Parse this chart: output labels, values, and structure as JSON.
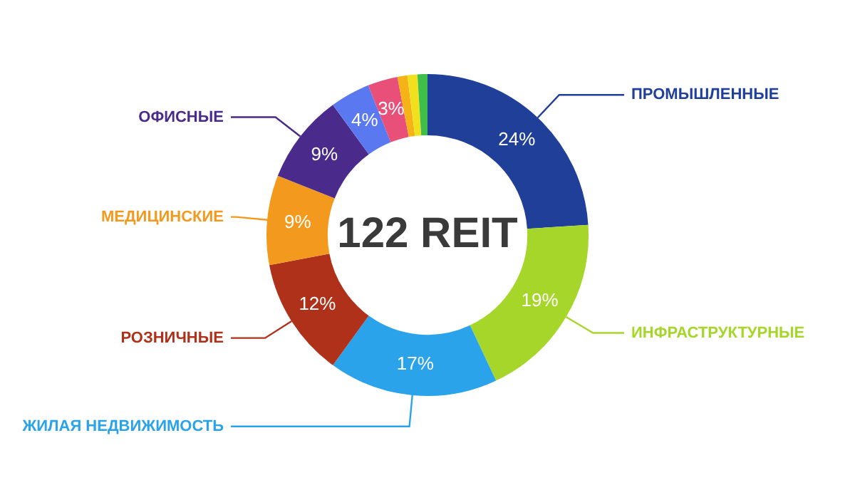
{
  "chart_data": {
    "type": "donut",
    "categories": [
      "ПРОМЫШЛЕННЫЕ",
      "ИНФРАСТРУКТУРНЫЕ",
      "ЖИЛАЯ НЕДВИЖИМОСТЬ",
      "РОЗНИЧНЫЕ",
      "МЕДИЦИНСКИЕ",
      "ОФИСНЫЕ",
      null,
      null,
      null,
      null,
      null
    ],
    "values": [
      24,
      19,
      17,
      12,
      9,
      9,
      4,
      3,
      1,
      1,
      1
    ],
    "value_labels": [
      "24%",
      "19%",
      "17%",
      "12%",
      "9%",
      "9%",
      "4%",
      "3%",
      null,
      null,
      null
    ],
    "colors": [
      "#1f3f99",
      "#a6d62a",
      "#2aa3ea",
      "#b0311a",
      "#f39a1e",
      "#4a2a8a",
      "#5a78f0",
      "#e8507a",
      "#f5b318",
      "#f0e01e",
      "#3fbf4a"
    ],
    "annotations": [
      "122 REIT"
    ],
    "legend": false
  }
}
